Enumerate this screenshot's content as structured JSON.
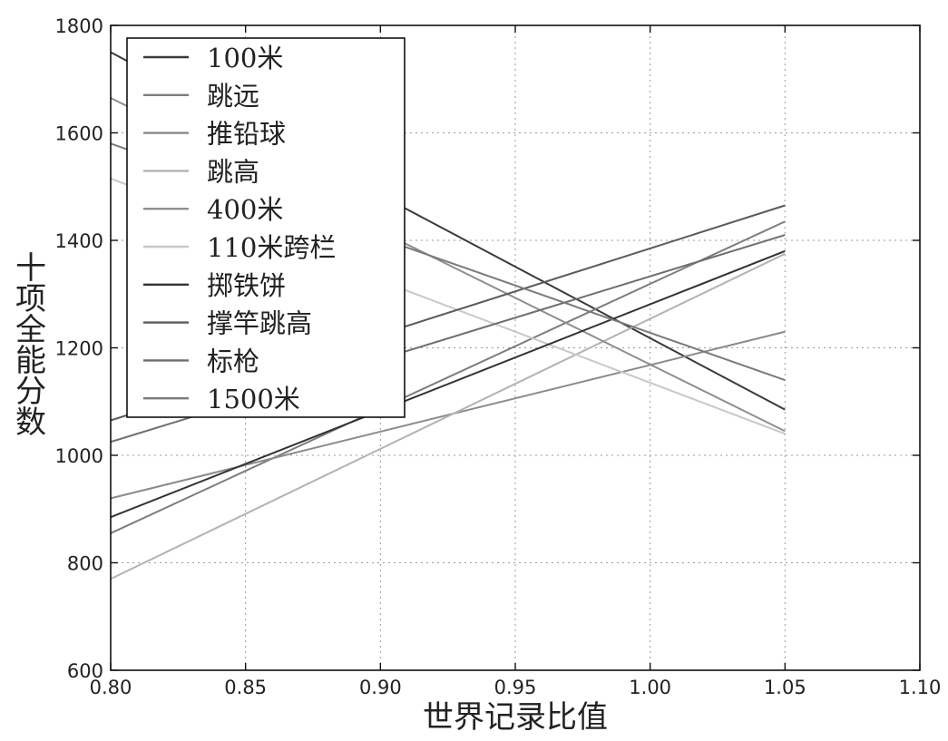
{
  "chart_data": {
    "type": "line",
    "xlabel": "世界记录比值",
    "ylabel": "十项全能分数",
    "xlim": [
      0.8,
      1.1
    ],
    "ylim": [
      600,
      1800
    ],
    "x_ticks": [
      "0.80",
      "0.85",
      "0.90",
      "0.95",
      "1.00",
      "1.05",
      "1.10"
    ],
    "y_ticks": [
      "600",
      "800",
      "1000",
      "1200",
      "1400",
      "1600",
      "1800"
    ],
    "grid": true,
    "legend_position": "upper-left",
    "series": [
      {
        "name": "100米",
        "color": "#3a3a3a",
        "x": [
          0.8,
          1.05
        ],
        "y": [
          1750,
          1085
        ]
      },
      {
        "name": "跳远",
        "color": "#7d7d7d",
        "x": [
          0.8,
          1.05
        ],
        "y": [
          855,
          1435
        ]
      },
      {
        "name": "推铅球",
        "color": "#8a8a8a",
        "x": [
          0.8,
          1.05
        ],
        "y": [
          920,
          1230
        ]
      },
      {
        "name": "跳高",
        "color": "#b3b3b3",
        "x": [
          0.8,
          1.05
        ],
        "y": [
          770,
          1375
        ]
      },
      {
        "name": "400米",
        "color": "#8f8f8f",
        "x": [
          0.8,
          1.05
        ],
        "y": [
          1665,
          1045
        ]
      },
      {
        "name": "110米跨栏",
        "color": "#c8c8c8",
        "x": [
          0.8,
          1.05
        ],
        "y": [
          1515,
          1040
        ]
      },
      {
        "name": "掷铁饼",
        "color": "#333333",
        "x": [
          0.8,
          1.05
        ],
        "y": [
          885,
          1380
        ]
      },
      {
        "name": "撑竿跳高",
        "color": "#5a5a5a",
        "x": [
          0.8,
          1.05
        ],
        "y": [
          1065,
          1465
        ]
      },
      {
        "name": "标枪",
        "color": "#6e6e6e",
        "x": [
          0.8,
          1.05
        ],
        "y": [
          1025,
          1410
        ]
      },
      {
        "name": "1500米",
        "color": "#7a7a7a",
        "x": [
          0.8,
          1.05
        ],
        "y": [
          1580,
          1140
        ]
      }
    ]
  }
}
